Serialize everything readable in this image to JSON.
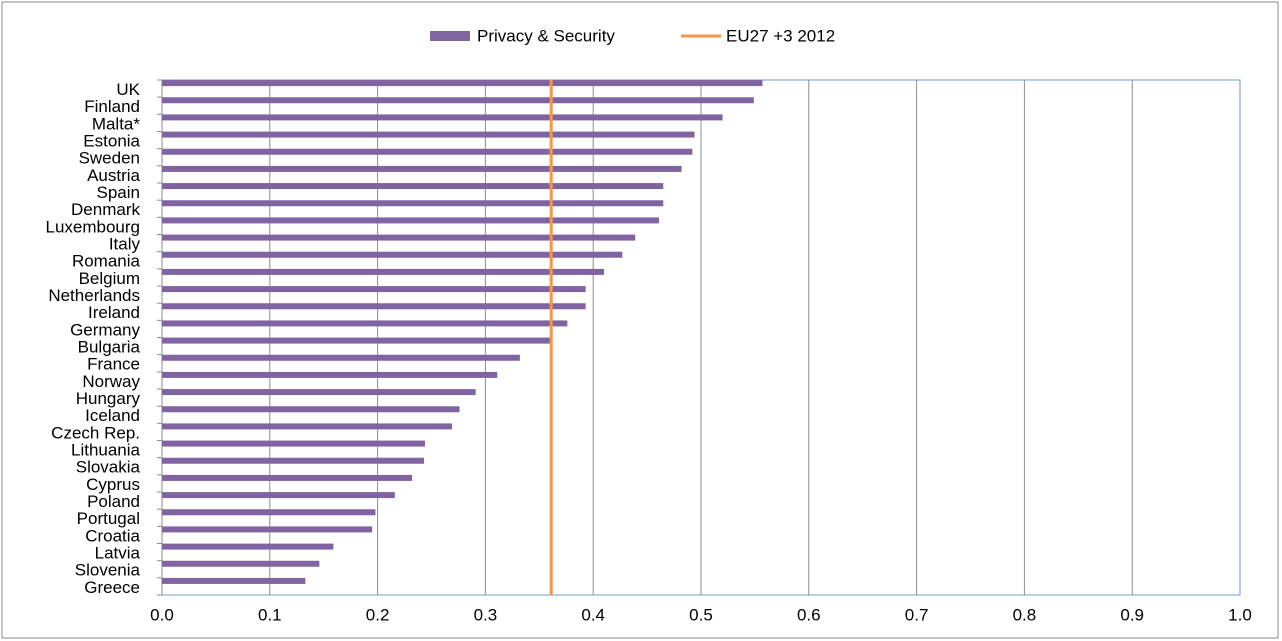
{
  "chart_data": {
    "type": "bar",
    "orientation": "horizontal",
    "categories": [
      "UK",
      "Finland",
      "Malta*",
      "Estonia",
      "Sweden",
      "Austria",
      "Spain",
      "Denmark",
      "Luxembourg",
      "Italy",
      "Romania",
      "Belgium",
      "Netherlands",
      "Ireland",
      "Germany",
      "Bulgaria",
      "France",
      "Norway",
      "Hungary",
      "Iceland",
      "Czech Rep.",
      "Lithuania",
      "Slovakia",
      "Cyprus",
      "Poland",
      "Portugal",
      "Croatia",
      "Latvia",
      "Slovenia",
      "Greece"
    ],
    "series": [
      {
        "name": "Privacy & Security",
        "color": "#8064a2",
        "values": [
          0.557,
          0.549,
          0.52,
          0.494,
          0.492,
          0.482,
          0.465,
          0.465,
          0.461,
          0.439,
          0.427,
          0.41,
          0.393,
          0.393,
          0.376,
          0.36,
          0.332,
          0.311,
          0.291,
          0.276,
          0.269,
          0.244,
          0.243,
          0.232,
          0.216,
          0.198,
          0.195,
          0.159,
          0.146,
          0.133
        ]
      }
    ],
    "reference_lines": [
      {
        "name": "EU27 +3 2012",
        "color": "#f79646",
        "value": 0.361
      }
    ],
    "xlim": [
      0,
      1
    ],
    "xticks": [
      {
        "value": 0,
        "label": "0.0"
      },
      0.1,
      0.2,
      0.3,
      0.4,
      0.5,
      0.6,
      0.7,
      0.8,
      0.9,
      {
        "value": 1,
        "label": "1.0"
      }
    ],
    "grid": true,
    "legend": "top"
  }
}
